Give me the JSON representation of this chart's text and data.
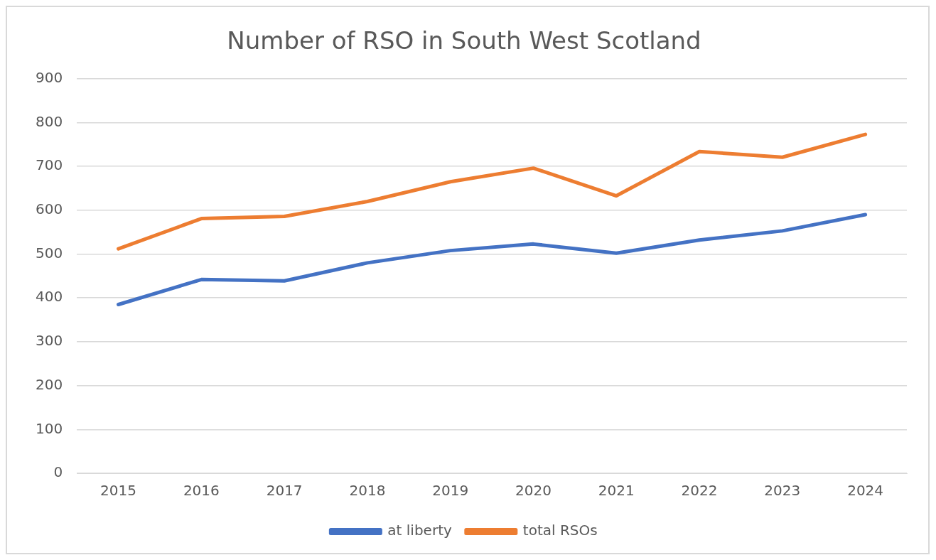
{
  "chart_data": {
    "type": "line",
    "title": "Number of RSO in South West Scotland",
    "categories": [
      "2015",
      "2016",
      "2017",
      "2018",
      "2019",
      "2020",
      "2021",
      "2022",
      "2023",
      "2024"
    ],
    "series": [
      {
        "name": "at liberty",
        "color": "#4472c4",
        "values": [
          385,
          442,
          439,
          480,
          508,
          523,
          502,
          532,
          553,
          590
        ]
      },
      {
        "name": "total RSOs",
        "color": "#ed7d31",
        "values": [
          512,
          581,
          586,
          620,
          665,
          696,
          633,
          734,
          721,
          773
        ]
      }
    ],
    "ylim": [
      0,
      900
    ],
    "yticks": [
      0,
      100,
      200,
      300,
      400,
      500,
      600,
      700,
      800,
      900
    ],
    "grid": "y",
    "legend": "bottom",
    "marker": "none",
    "line_style": "solid"
  }
}
